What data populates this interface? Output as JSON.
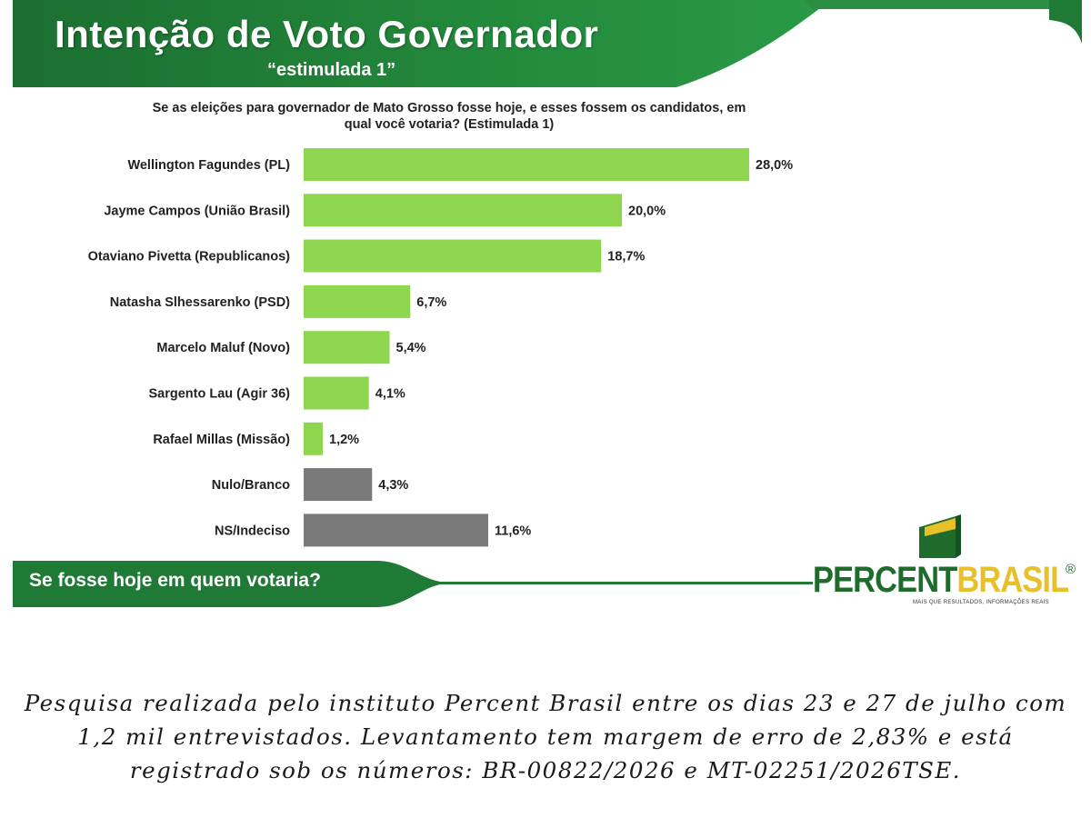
{
  "header": {
    "title": "Intenção de Voto Governador",
    "subtitle": "“estimulada 1”"
  },
  "colors": {
    "header_green": "#1f7a35",
    "bar_green": "#8fd650",
    "bar_gray": "#7a7a7a",
    "logo_green": "#1e6b2b",
    "logo_yellow": "#e8c02a"
  },
  "chart_data": {
    "type": "bar",
    "orientation": "horizontal",
    "title": "Se as eleições para governador de Mato Grosso fosse hoje, e esses fossem os candidatos, em qual você votaria? (Estimulada 1)",
    "categories": [
      "Wellington Fagundes (PL)",
      "Jayme Campos (União Brasil)",
      "Otaviano Pivetta (Republicanos)",
      "Natasha Slhessarenko (PSD)",
      "Marcelo Maluf (Novo)",
      "Sargento Lau (Agir 36)",
      "Rafael Millas (Missão)",
      "Nulo/Branco",
      "NS/Indeciso"
    ],
    "values": [
      28.0,
      20.0,
      18.7,
      6.7,
      5.4,
      4.1,
      1.2,
      4.3,
      11.6
    ],
    "value_labels": [
      "28,0%",
      "20,0%",
      "18,7%",
      "6,7%",
      "5,4%",
      "4,1%",
      "1,2%",
      "4,3%",
      "11,6%"
    ],
    "bar_colors": [
      "green",
      "green",
      "green",
      "green",
      "green",
      "green",
      "green",
      "gray",
      "gray"
    ],
    "xlim": [
      0,
      28
    ],
    "grid": false,
    "legend": "none"
  },
  "footer": {
    "text": "Se fosse hoje em quem votaria?"
  },
  "logo": {
    "brand_part1": "PERCENT",
    "brand_part2": "BRASIL",
    "registered": "®",
    "tagline": "MAIS QUE RESULTADOS, INFORMAÇÕES REAIS"
  },
  "caption": "Pesquisa realizada pelo instituto Percent Brasil entre os dias 23 e 27 de julho com 1,2 mil entrevistados. Levantamento tem margem de erro de 2,83% e está registrado sob os números: BR-00822/2026 e MT-02251/2026TSE."
}
